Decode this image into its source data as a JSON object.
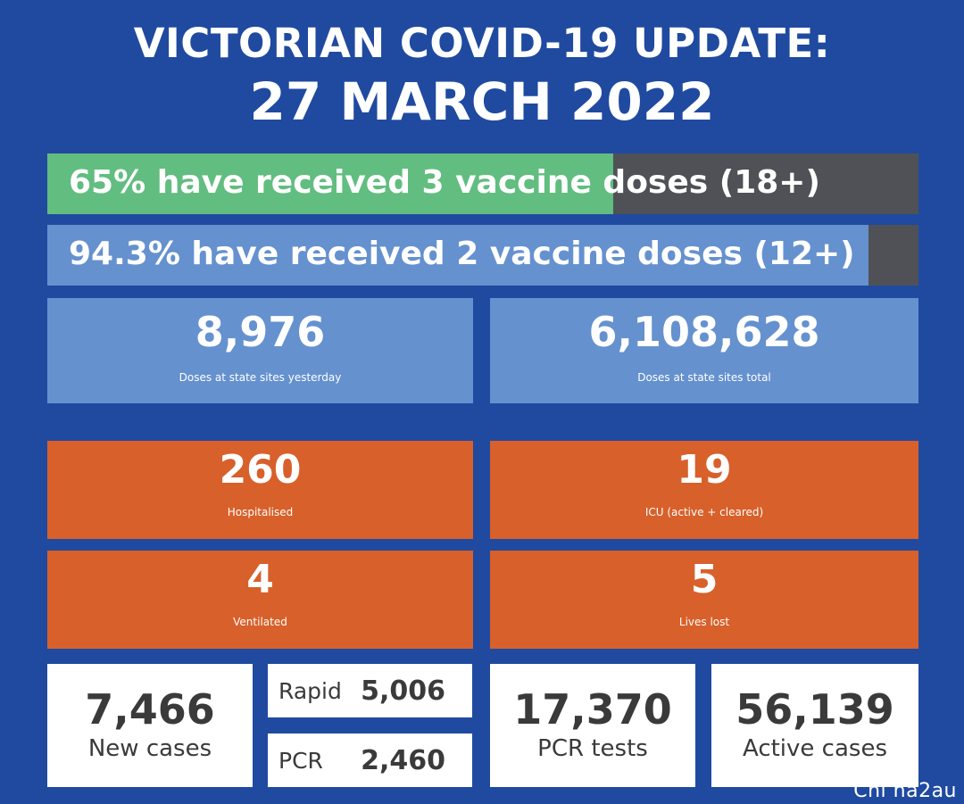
{
  "header": {
    "line1": "VICTORIAN COVID-19 UPDATE:",
    "line2": "27 MARCH 2022"
  },
  "vaccination": [
    {
      "label": "65% have received 3 vaccine doses (18+)",
      "fill_percent": 65
    },
    {
      "label": "94.3% have received 2 vaccine doses (12+)",
      "fill_percent": 94.3
    }
  ],
  "doses": {
    "yesterday": {
      "value": "8,976",
      "label": "Doses at state sites yesterday"
    },
    "total": {
      "value": "6,108,628",
      "label": "Doses at state sites total"
    }
  },
  "hospital": {
    "hospitalised": {
      "value": "260",
      "label": "Hospitalised"
    },
    "icu": {
      "value": "19",
      "label": "ICU (active + cleared)"
    },
    "ventilated": {
      "value": "4",
      "label": "Ventilated"
    },
    "lives_lost": {
      "value": "5",
      "label": "Lives lost"
    }
  },
  "cases": {
    "new_cases": {
      "value": "7,466",
      "label": "New cases"
    },
    "rapid": {
      "label": "Rapid",
      "value": "5,006"
    },
    "pcr": {
      "label": "PCR",
      "value": "2,460"
    },
    "pcr_tests": {
      "value": "17,370",
      "label": "PCR tests"
    },
    "active_cases": {
      "value": "56,139",
      "label": "Active cases"
    }
  },
  "watermark": "Chi na2au",
  "colors": {
    "background": "#1f4aa0",
    "bar_green": "#62bd80",
    "bar_blue": "#6591cf",
    "bar_track": "#4f5157",
    "orange": "#d8602a",
    "white_card": "#ffffff"
  }
}
